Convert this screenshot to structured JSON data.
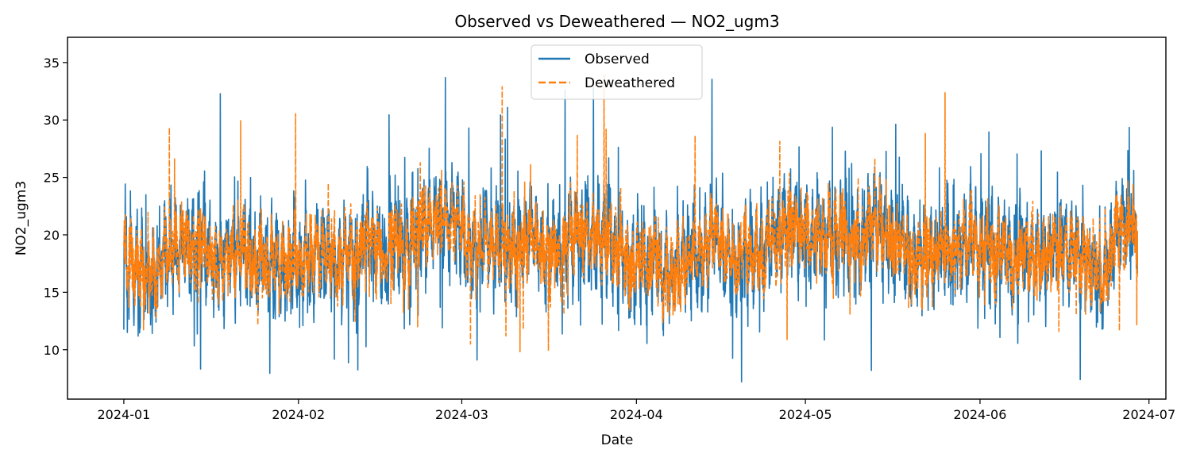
{
  "chart_data": {
    "type": "line",
    "title": "Observed vs Deweathered — NO2_ugm3",
    "xlabel": "Date",
    "ylabel": "NO2_ugm3",
    "x_range": [
      "2023-12-22",
      "2024-07-04"
    ],
    "ylim": [
      5.7,
      37.2
    ],
    "x_ticks": [
      "2024-01-01",
      "2024-02-01",
      "2024-03-01",
      "2024-04-01",
      "2024-05-01",
      "2024-06-01",
      "2024-07-01"
    ],
    "x_tick_labels": [
      "2024-01",
      "2024-02",
      "2024-03",
      "2024-04",
      "2024-05",
      "2024-06",
      "2024-07"
    ],
    "y_ticks": [
      10,
      15,
      20,
      25,
      30,
      35
    ],
    "y_tick_labels": [
      "10",
      "15",
      "20",
      "25",
      "30",
      "35"
    ],
    "grid": false,
    "legend_position": "top-center",
    "frequency": "hourly",
    "series": [
      {
        "name": "Observed",
        "color": "#1f77b4",
        "style": "solid",
        "start": "2024-01-01",
        "end": "2024-06-29",
        "mean": 19.0,
        "typical_range": [
          12,
          27
        ],
        "max": 33.7,
        "min": 7.2
      },
      {
        "name": "Deweathered",
        "color": "#ff7f0e",
        "style": "dashed",
        "start": "2024-01-01",
        "end": "2024-06-29",
        "mean": 19.0,
        "typical_range": [
          14,
          25
        ],
        "max": 35.9,
        "min": 8.5
      }
    ]
  }
}
